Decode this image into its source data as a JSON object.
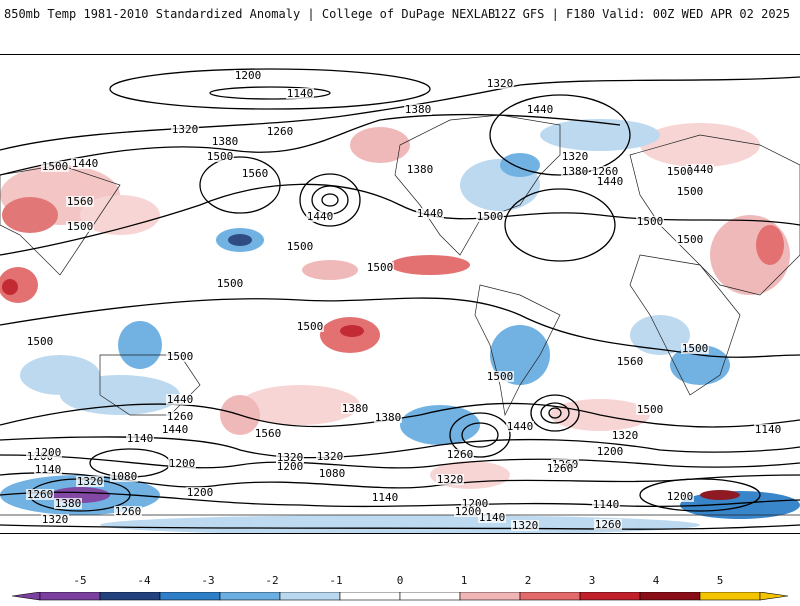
{
  "header": {
    "title_left": "850mb Temp 1981-2010 Standardized Anomaly | College of DuPage NEXLAB",
    "title_right": "12Z GFS | F180 Valid: 00Z WED APR 02 2025"
  },
  "colorbar": {
    "ticks": [
      "-5",
      "-4",
      "-3",
      "-2",
      "-1",
      "0",
      "1",
      "2",
      "3",
      "4",
      "5"
    ],
    "colors": [
      "#7b3fa0",
      "#24437e",
      "#2f7fc8",
      "#6aaee2",
      "#b9d8f0",
      "#ffffff",
      "#ffffff",
      "#f0b6b6",
      "#e26a6a",
      "#c0202a",
      "#8a0e18",
      "#f5c400"
    ]
  },
  "contour_labels": [
    "1200",
    "1140",
    "1320",
    "1380",
    "1440",
    "1320",
    "1260",
    "1380",
    "1500",
    "1560",
    "1440",
    "1500",
    "1440",
    "1320",
    "1380",
    "1260",
    "1440",
    "1500",
    "1500",
    "1560",
    "1380",
    "1440",
    "1500",
    "1500",
    "1500",
    "1440",
    "1500",
    "1500",
    "1500",
    "1500",
    "1500",
    "1500",
    "1560",
    "1500",
    "1440",
    "1380",
    "1260",
    "1440",
    "1560",
    "1500",
    "1140",
    "1260",
    "1320",
    "1200",
    "1440",
    "1380",
    "1260",
    "1320",
    "1200",
    "1320",
    "1200",
    "1140",
    "1080",
    "1080",
    "1140",
    "1200",
    "1320",
    "1380",
    "1260",
    "1320",
    "1260",
    "1200",
    "1140",
    "1200",
    "1200",
    "1320",
    "1260",
    "1140",
    "1200",
    "1140",
    "1260",
    "1320",
    "1200",
    "1500",
    "1500"
  ]
}
